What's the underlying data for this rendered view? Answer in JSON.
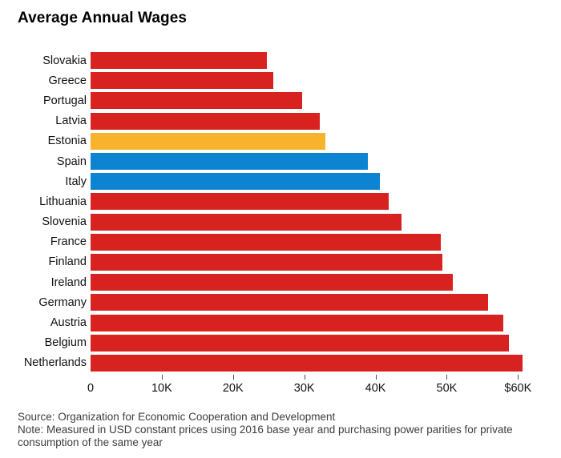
{
  "title": "Average Annual Wages",
  "chart_data": {
    "type": "bar",
    "orientation": "horizontal",
    "title": "Average Annual Wages",
    "categories": [
      "Slovakia",
      "Greece",
      "Portugal",
      "Latvia",
      "Estonia",
      "Spain",
      "Italy",
      "Lithuania",
      "Slovenia",
      "France",
      "Finland",
      "Ireland",
      "Germany",
      "Austria",
      "Belgium",
      "Netherlands"
    ],
    "values": [
      24700,
      25700,
      29700,
      32200,
      33000,
      38900,
      40600,
      41900,
      43600,
      49200,
      49400,
      50800,
      55800,
      57900,
      58700,
      60600
    ],
    "bar_colors": [
      "#d7221f",
      "#d7221f",
      "#d7221f",
      "#d7221f",
      "#f8b32c",
      "#0c84d1",
      "#0c84d1",
      "#d7221f",
      "#d7221f",
      "#d7221f",
      "#d7221f",
      "#d7221f",
      "#d7221f",
      "#d7221f",
      "#d7221f",
      "#d7221f"
    ],
    "colors": {
      "default": "#d7221f",
      "highlight_gold": "#f8b32c",
      "highlight_blue": "#0c84d1"
    },
    "x_ticks": [
      {
        "value": 0,
        "label": "0"
      },
      {
        "value": 10000,
        "label": "10K"
      },
      {
        "value": 20000,
        "label": "20K"
      },
      {
        "value": 30000,
        "label": "30K"
      },
      {
        "value": 40000,
        "label": "40K"
      },
      {
        "value": 50000,
        "label": "50K"
      },
      {
        "value": 60000,
        "label": "$60K"
      }
    ],
    "xlim": [
      0,
      61200
    ],
    "xlabel": "",
    "ylabel": "",
    "grid": false,
    "legend": false
  },
  "footer": {
    "source": "Source: Organization for Economic Cooperation and Development",
    "note": "Note: Measured in USD constant prices using 2016 base year and purchasing power parities for private consumption of the same year"
  }
}
